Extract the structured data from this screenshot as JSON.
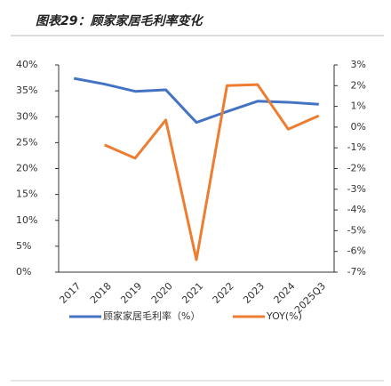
{
  "chart_data": {
    "type": "line",
    "title": "图表29：顾家家居毛利率变化",
    "categories": [
      "2017",
      "2018",
      "2019",
      "2020",
      "2021",
      "2022",
      "2023",
      "2024",
      "2025Q3"
    ],
    "series": [
      {
        "name": "顾家家居毛利率（%）",
        "color": "#4472c4",
        "values": [
          37.4,
          36.3,
          34.9,
          35.2,
          28.9,
          31.0,
          33.0,
          32.8,
          32.4
        ]
      },
      {
        "name": "YOY(%)",
        "color": "#ed7d31",
        "axis": "y2",
        "values": [
          null,
          -0.86,
          -1.5,
          0.34,
          -6.4,
          2.0,
          2.05,
          -0.1,
          0.55
        ]
      }
    ],
    "ylim": [
      0,
      40
    ],
    "yticks": [
      {
        "value": 0,
        "label": "0%"
      },
      {
        "value": 5,
        "label": "5%"
      },
      {
        "value": 10,
        "label": "10%"
      },
      {
        "value": 15,
        "label": "15%"
      },
      {
        "value": 20,
        "label": "20%"
      },
      {
        "value": 25,
        "label": "25%"
      },
      {
        "value": 30,
        "label": "30%"
      },
      {
        "value": 35,
        "label": "35%"
      },
      {
        "value": 40,
        "label": "40%"
      }
    ],
    "y2lim": [
      -7,
      3
    ],
    "y2ticks": [
      {
        "value": -7,
        "label": "-7%"
      },
      {
        "value": -6,
        "label": "-6%"
      },
      {
        "value": -5,
        "label": "-5%"
      },
      {
        "value": -4,
        "label": "-4%"
      },
      {
        "value": -3,
        "label": "-3%"
      },
      {
        "value": -2,
        "label": "-2%"
      },
      {
        "value": -1,
        "label": "-1%"
      },
      {
        "value": 0,
        "label": "0%"
      },
      {
        "value": 1,
        "label": "1%"
      },
      {
        "value": 2,
        "label": "2%"
      },
      {
        "value": 3,
        "label": "3%"
      }
    ],
    "grid": false
  }
}
